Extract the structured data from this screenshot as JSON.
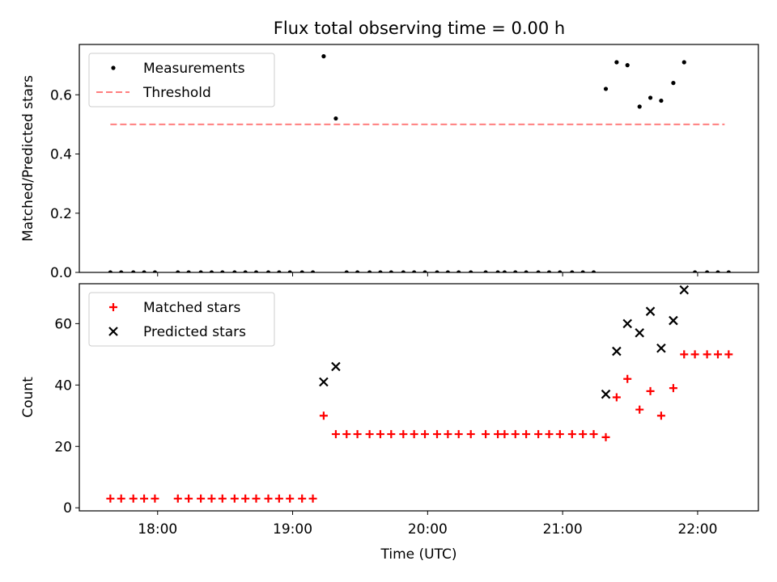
{
  "title": "Flux total observing time = 0.00 h",
  "chart_data": [
    {
      "type": "scatter",
      "ylabel": "Matched/Predicted stars",
      "xlim": [
        17.42,
        22.45
      ],
      "ylim": [
        0,
        0.77
      ],
      "yticks": [
        0.0,
        0.2,
        0.4,
        0.6
      ],
      "ytick_labels": [
        "0.0",
        "0.2",
        "0.4",
        "0.6"
      ],
      "xticks": [
        18,
        19,
        20,
        21,
        22
      ],
      "legend_position": "top-left",
      "series": [
        {
          "name": "Measurements",
          "marker": "dot",
          "color": "#000000",
          "x": [
            17.65,
            17.73,
            17.82,
            17.9,
            17.98,
            18.15,
            18.23,
            18.32,
            18.4,
            18.48,
            18.57,
            18.65,
            18.73,
            18.82,
            18.9,
            18.98,
            19.07,
            19.15,
            19.23,
            19.32,
            19.4,
            19.48,
            19.57,
            19.65,
            19.73,
            19.82,
            19.9,
            19.98,
            20.07,
            20.15,
            20.23,
            20.32,
            20.43,
            20.52,
            20.57,
            20.65,
            20.73,
            20.82,
            20.9,
            20.98,
            21.07,
            21.15,
            21.23,
            21.32,
            21.4,
            21.48,
            21.57,
            21.65,
            21.73,
            21.82,
            21.9,
            21.98,
            22.07,
            22.15,
            22.23
          ],
          "y": [
            0,
            0,
            0,
            0,
            0,
            0,
            0,
            0,
            0,
            0,
            0,
            0,
            0,
            0,
            0,
            0,
            0,
            0,
            0.73,
            0.52,
            0,
            0,
            0,
            0,
            0,
            0,
            0,
            0,
            0,
            0,
            0,
            0,
            0,
            0,
            0,
            0,
            0,
            0,
            0,
            0,
            0,
            0,
            0,
            0.62,
            0.71,
            0.7,
            0.56,
            0.59,
            0.58,
            0.64,
            0.71,
            0,
            0,
            0,
            0
          ]
        },
        {
          "name": "Threshold",
          "style": "dashed",
          "color": "#ff7f7f",
          "x": [
            17.65,
            22.2
          ],
          "y": [
            0.5,
            0.5
          ]
        }
      ]
    },
    {
      "type": "scatter",
      "ylabel": "Count",
      "xlabel": "Time (UTC)",
      "xlim": [
        17.42,
        22.45
      ],
      "ylim": [
        -1,
        73
      ],
      "yticks": [
        0,
        20,
        40,
        60
      ],
      "ytick_labels": [
        "0",
        "20",
        "40",
        "60"
      ],
      "xticks": [
        18,
        19,
        20,
        21,
        22
      ],
      "xtick_labels": [
        "18:00",
        "19:00",
        "20:00",
        "21:00",
        "22:00"
      ],
      "legend_position": "top-left",
      "series": [
        {
          "name": "Matched stars",
          "marker": "plus",
          "color": "#ff0000",
          "x": [
            17.65,
            17.73,
            17.82,
            17.9,
            17.98,
            18.15,
            18.23,
            18.32,
            18.4,
            18.48,
            18.57,
            18.65,
            18.73,
            18.82,
            18.9,
            18.98,
            19.07,
            19.15,
            19.23,
            19.32,
            19.4,
            19.48,
            19.57,
            19.65,
            19.73,
            19.82,
            19.9,
            19.98,
            20.07,
            20.15,
            20.23,
            20.32,
            20.43,
            20.52,
            20.57,
            20.65,
            20.73,
            20.82,
            20.9,
            20.98,
            21.07,
            21.15,
            21.23,
            21.32,
            21.4,
            21.48,
            21.57,
            21.65,
            21.73,
            21.82,
            21.9,
            21.98,
            22.07,
            22.15,
            22.23
          ],
          "y": [
            3,
            3,
            3,
            3,
            3,
            3,
            3,
            3,
            3,
            3,
            3,
            3,
            3,
            3,
            3,
            3,
            3,
            3,
            30,
            24,
            24,
            24,
            24,
            24,
            24,
            24,
            24,
            24,
            24,
            24,
            24,
            24,
            24,
            24,
            24,
            24,
            24,
            24,
            24,
            24,
            24,
            24,
            24,
            23,
            36,
            42,
            32,
            38,
            30,
            39,
            50,
            50,
            50,
            50,
            50
          ]
        },
        {
          "name": "Predicted stars",
          "marker": "x",
          "color": "#000000",
          "x": [
            19.23,
            19.32,
            21.32,
            21.4,
            21.48,
            21.57,
            21.65,
            21.73,
            21.82,
            21.9
          ],
          "y": [
            41,
            46,
            37,
            51,
            60,
            57,
            64,
            52,
            61,
            71
          ]
        }
      ]
    }
  ]
}
